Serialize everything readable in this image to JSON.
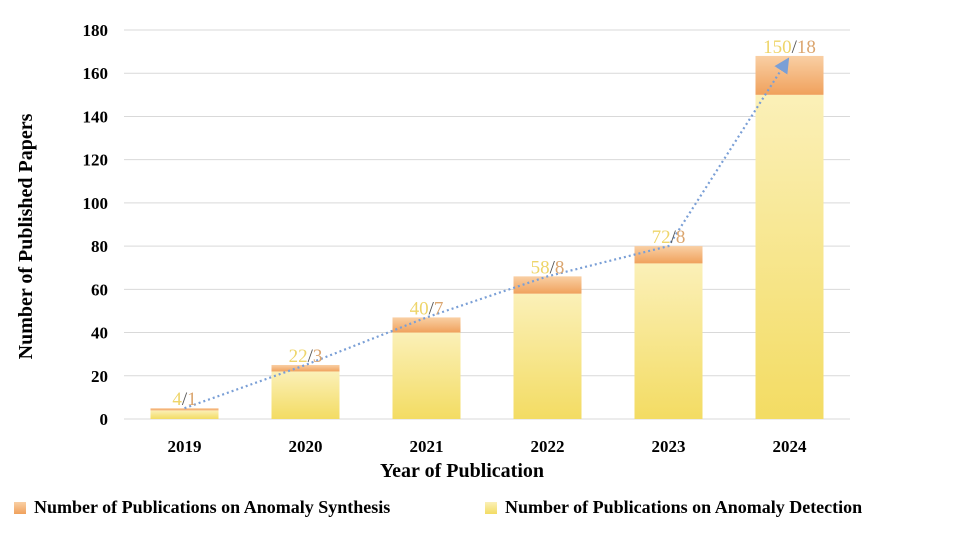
{
  "chart_data": {
    "type": "bar",
    "stacked": true,
    "title": "",
    "xlabel": "Year of Publication",
    "ylabel": "Number of Published Papers",
    "ylim": [
      0,
      180
    ],
    "yticks": [
      0,
      20,
      40,
      60,
      80,
      100,
      120,
      140,
      160,
      180
    ],
    "categories": [
      "2019",
      "2020",
      "2021",
      "2022",
      "2023",
      "2024"
    ],
    "series": [
      {
        "name": "Number of Publications on Anomaly Detection",
        "values": [
          4,
          22,
          40,
          58,
          72,
          150
        ],
        "color": "#f3dc63"
      },
      {
        "name": "Number of Publications on Anomaly Synthesis",
        "values": [
          1,
          3,
          7,
          8,
          8,
          18
        ],
        "color": "#f2a66a"
      }
    ],
    "data_labels": [
      "4/1",
      "22/3",
      "40/7",
      "58/8",
      "72/8",
      "150/18"
    ],
    "trend_line": {
      "style": "dotted-arrow",
      "color": "#7a9fd6",
      "values": [
        5,
        25,
        47,
        66,
        80,
        168
      ]
    },
    "grid": true,
    "legend_position": "bottom"
  }
}
